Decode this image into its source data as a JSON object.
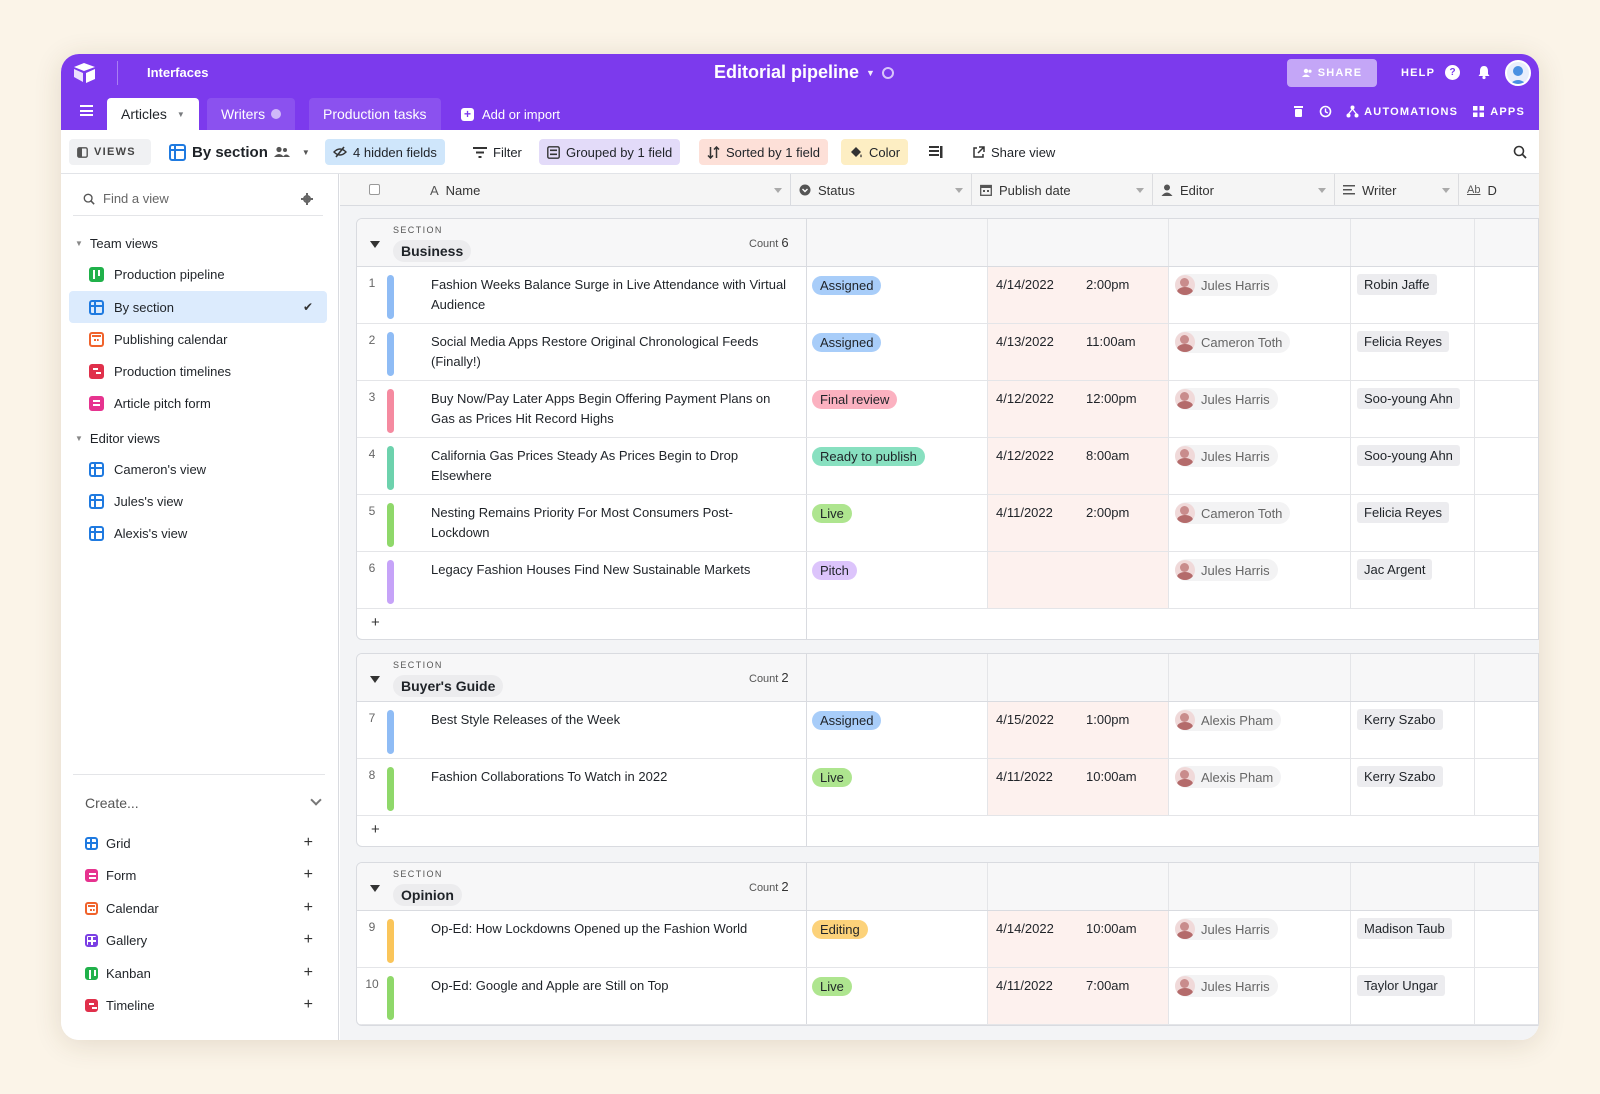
{
  "header": {
    "interfaces_label": "Interfaces",
    "base_title": "Editorial pipeline",
    "share_label": "SHARE",
    "help_label": "HELP",
    "help_glyph": "?",
    "accent_color": "#7c3aed"
  },
  "tabs": [
    {
      "label": "Articles",
      "active": true
    },
    {
      "label": "Writers",
      "active": false
    },
    {
      "label": "Production tasks",
      "active": false
    }
  ],
  "add_import_label": "Add or import",
  "tab_actions": {
    "automations_label": "AUTOMATIONS",
    "apps_label": "APPS"
  },
  "toolbar": {
    "views_label": "VIEWS",
    "current_view": "By section",
    "hidden_fields": "4 hidden fields",
    "filter": "Filter",
    "grouped": "Grouped by 1 field",
    "sorted": "Sorted by 1 field",
    "color": "Color",
    "share_view": "Share view"
  },
  "sidebar": {
    "find_placeholder": "Find a view",
    "team_views_label": "Team views",
    "team_views": [
      {
        "label": "Production pipeline",
        "icon": "kanban-icon",
        "color": "#20b14a"
      },
      {
        "label": "By section",
        "icon": "grid-icon",
        "color": "#1f7ae0",
        "selected": true
      },
      {
        "label": "Publishing calendar",
        "icon": "calendar-icon",
        "color": "#f0632c"
      },
      {
        "label": "Production timelines",
        "icon": "timeline-icon",
        "color": "#e0304b"
      },
      {
        "label": "Article pitch form",
        "icon": "form-icon",
        "color": "#e6338f"
      }
    ],
    "editor_views_label": "Editor views",
    "editor_views": [
      {
        "label": "Cameron's view",
        "icon": "grid-icon",
        "color": "#1f7ae0"
      },
      {
        "label": "Jules's view",
        "icon": "grid-icon",
        "color": "#1f7ae0"
      },
      {
        "label": "Alexis's view",
        "icon": "grid-icon",
        "color": "#1f7ae0"
      }
    ],
    "create_label": "Create...",
    "create_items": [
      {
        "label": "Grid",
        "icon": "grid-icon",
        "color": "#1f7ae0"
      },
      {
        "label": "Form",
        "icon": "form-icon",
        "color": "#e6338f"
      },
      {
        "label": "Calendar",
        "icon": "calendar-icon",
        "color": "#f0632c"
      },
      {
        "label": "Gallery",
        "icon": "gallery-icon",
        "color": "#7b3fe4"
      },
      {
        "label": "Kanban",
        "icon": "kanban-icon",
        "color": "#20b14a"
      },
      {
        "label": "Timeline",
        "icon": "timeline-icon",
        "color": "#e0304b"
      }
    ]
  },
  "columns": {
    "name": "Name",
    "status": "Status",
    "publish_date": "Publish date",
    "editor": "Editor",
    "writer": "Writer",
    "truncated": "D"
  },
  "section_label": "SECTION",
  "count_label": "Count",
  "sections": [
    {
      "name": "Business",
      "count": "6",
      "records": [
        {
          "num": "1",
          "title": "Fashion Weeks Balance Surge in Live Attendance with Virtual Audience",
          "status": "Assigned",
          "date": "4/14/2022",
          "time": "2:00pm",
          "editor": "Jules Harris",
          "writer": "Robin Jaffe"
        },
        {
          "num": "2",
          "title": "Social Media Apps Restore Original Chronological Feeds (Finally!)",
          "status": "Assigned",
          "date": "4/13/2022",
          "time": "11:00am",
          "editor": "Cameron Toth",
          "writer": "Felicia Reyes"
        },
        {
          "num": "3",
          "title": "Buy Now/Pay Later Apps Begin Offering Payment Plans on Gas as Prices Hit Record Highs",
          "status": "Final review",
          "date": "4/12/2022",
          "time": "12:00pm",
          "editor": "Jules Harris",
          "writer": "Soo-young Ahn"
        },
        {
          "num": "4",
          "title": "California Gas Prices Steady As Prices Begin to Drop Elsewhere",
          "status": "Ready to publish",
          "date": "4/12/2022",
          "time": "8:00am",
          "editor": "Jules Harris",
          "writer": "Soo-young Ahn"
        },
        {
          "num": "5",
          "title": "Nesting Remains Priority For Most Consumers Post-Lockdown",
          "status": "Live",
          "date": "4/11/2022",
          "time": "2:00pm",
          "editor": "Cameron Toth",
          "writer": "Felicia Reyes"
        },
        {
          "num": "6",
          "title": "Legacy Fashion Houses Find New Sustainable Markets",
          "status": "Pitch",
          "date": "",
          "time": "",
          "editor": "Jules Harris",
          "writer": "Jac Argent"
        }
      ]
    },
    {
      "name": "Buyer's Guide",
      "count": "2",
      "records": [
        {
          "num": "7",
          "title": "Best Style Releases of the Week",
          "status": "Assigned",
          "date": "4/15/2022",
          "time": "1:00pm",
          "editor": "Alexis Pham",
          "writer": "Kerry Szabo"
        },
        {
          "num": "8",
          "title": "Fashion Collaborations To Watch in 2022",
          "status": "Live",
          "date": "4/11/2022",
          "time": "10:00am",
          "editor": "Alexis Pham",
          "writer": "Kerry Szabo"
        }
      ]
    },
    {
      "name": "Opinion",
      "count": "2",
      "records": [
        {
          "num": "9",
          "title": "Op-Ed: How Lockdowns Opened up the Fashion World",
          "status": "Editing",
          "date": "4/14/2022",
          "time": "10:00am",
          "editor": "Jules Harris",
          "writer": "Madison Taub"
        },
        {
          "num": "10",
          "title": "Op-Ed: Google and Apple are Still on Top",
          "status": "Live",
          "date": "4/11/2022",
          "time": "7:00am",
          "editor": "Jules Harris",
          "writer": "Taylor Ungar"
        }
      ]
    }
  ],
  "status_colors": {
    "Assigned": {
      "bg": "#a8cdf9",
      "bar": "#8fbcf5"
    },
    "Final review": {
      "bg": "#fbb1c0",
      "bar": "#f58aa0"
    },
    "Ready to publish": {
      "bg": "#88e0c0",
      "bar": "#6dd2ad"
    },
    "Live": {
      "bg": "#aee58f",
      "bar": "#8fd86a"
    },
    "Pitch": {
      "bg": "#dcc4fb",
      "bar": "#c6a3f8"
    },
    "Editing": {
      "bg": "#fcd27a",
      "bar": "#fac55a"
    }
  }
}
